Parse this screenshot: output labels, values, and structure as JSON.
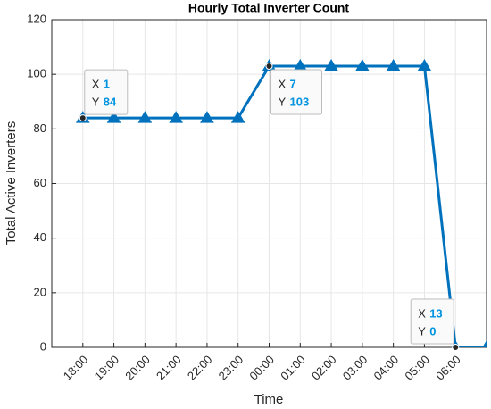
{
  "chart_data": {
    "type": "line",
    "title": "Hourly Total Inverter Count",
    "xlabel": "Time",
    "ylabel": "Total Active Inverters",
    "x": [
      1,
      2,
      3,
      4,
      5,
      6,
      7,
      8,
      9,
      10,
      11,
      12,
      13,
      14
    ],
    "series": [
      {
        "color": "#0072bd",
        "values": [
          84,
          84,
          84,
          84,
          84,
          84,
          103,
          103,
          103,
          103,
          103,
          103,
          0,
          0
        ]
      }
    ],
    "xlim": [
      0,
      14
    ],
    "ylim": [
      0,
      120
    ],
    "xticks": [
      {
        "value": 1,
        "label": "18:00"
      },
      {
        "value": 2,
        "label": "19:00"
      },
      {
        "value": 3,
        "label": "20:00"
      },
      {
        "value": 4,
        "label": "21:00"
      },
      {
        "value": 5,
        "label": "22:00"
      },
      {
        "value": 6,
        "label": "23:00"
      },
      {
        "value": 7,
        "label": "00:00"
      },
      {
        "value": 8,
        "label": "01:00"
      },
      {
        "value": 9,
        "label": "02:00"
      },
      {
        "value": 10,
        "label": "03:00"
      },
      {
        "value": 11,
        "label": "04:00"
      },
      {
        "value": 12,
        "label": "05:00"
      },
      {
        "value": 13,
        "label": "06:00"
      }
    ],
    "yticks": [
      0,
      20,
      40,
      60,
      80,
      100,
      120
    ],
    "grid": true,
    "datatip_labels": [
      "X",
      "Y"
    ],
    "datatips": [
      {
        "x": 1,
        "y": 84
      },
      {
        "x": 7,
        "y": 103
      },
      {
        "x": 13,
        "y": 0
      }
    ]
  }
}
